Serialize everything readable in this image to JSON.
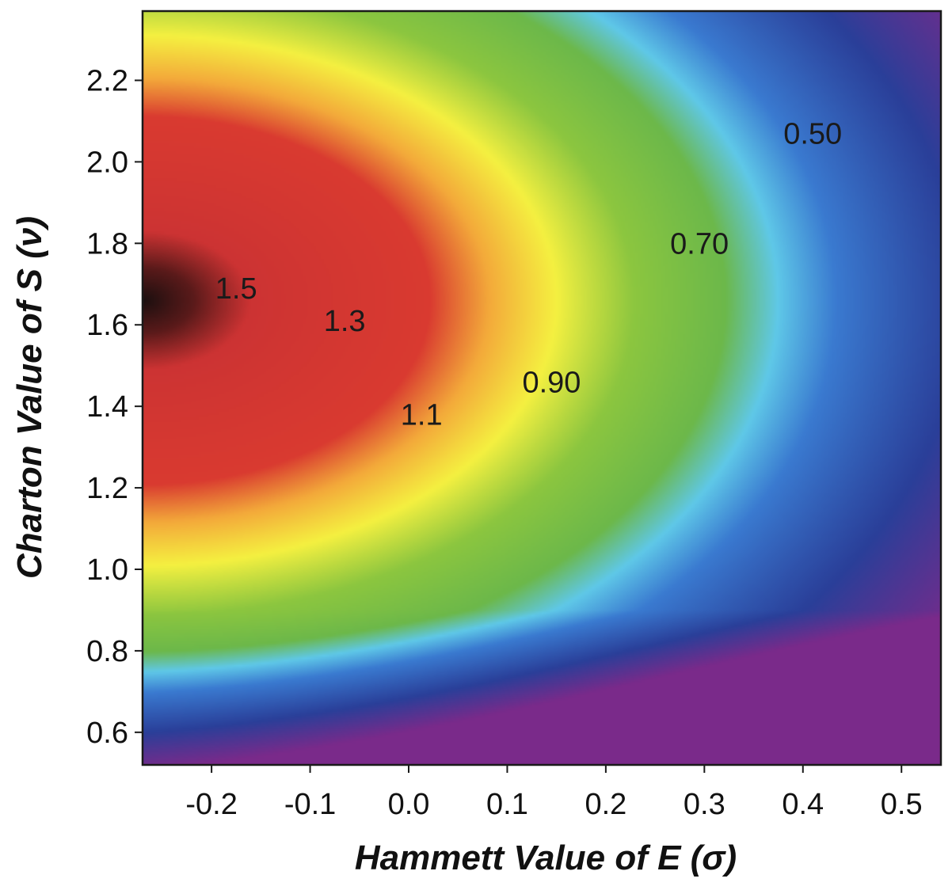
{
  "chart_data": {
    "type": "heatmap",
    "xlabel": "Hammett Value of E (σ)",
    "ylabel": "Charton Value of S (ν)",
    "xlim": [
      -0.27,
      0.54
    ],
    "ylim": [
      0.52,
      2.37
    ],
    "x_ticks": [
      -0.2,
      -0.1,
      0.0,
      0.1,
      0.2,
      0.3,
      0.4,
      0.5
    ],
    "x_tick_labels": [
      "-0.2",
      "-0.1",
      "0.0",
      "0.1",
      "0.2",
      "0.3",
      "0.4",
      "0.5"
    ],
    "y_ticks": [
      0.6,
      0.8,
      1.0,
      1.2,
      1.4,
      1.6,
      1.8,
      2.0,
      2.2
    ],
    "y_tick_labels": [
      "0.6",
      "0.8",
      "1.0",
      "1.2",
      "1.4",
      "1.6",
      "1.8",
      "2.0",
      "2.2"
    ],
    "surface": {
      "peak_x": -0.27,
      "peak_y": 1.66,
      "peak_value": 1.6,
      "color_scale": [
        {
          "value": 0.25,
          "color": "#7a2a8a"
        },
        {
          "value": 0.33,
          "color": "#2a3f99"
        },
        {
          "value": 0.42,
          "color": "#3a7ad0"
        },
        {
          "value": 0.47,
          "color": "#5fc8e8"
        },
        {
          "value": 0.52,
          "color": "#6cb84a"
        },
        {
          "value": 0.62,
          "color": "#8cc63f"
        },
        {
          "value": 0.72,
          "color": "#f4f040"
        },
        {
          "value": 0.82,
          "color": "#f3a93a"
        },
        {
          "value": 0.92,
          "color": "#d93a30"
        },
        {
          "value": 1.3,
          "color": "#cc3333"
        },
        {
          "value": 1.45,
          "color": "#5a1a1a"
        },
        {
          "value": 1.6,
          "color": "#1a0f0f"
        }
      ]
    },
    "contour_labels": [
      {
        "text": "1.5",
        "x": -0.175,
        "y": 1.69
      },
      {
        "text": "1.3",
        "x": -0.065,
        "y": 1.61
      },
      {
        "text": "1.1",
        "x": 0.013,
        "y": 1.38
      },
      {
        "text": "0.90",
        "x": 0.145,
        "y": 1.46
      },
      {
        "text": "0.70",
        "x": 0.295,
        "y": 1.8
      },
      {
        "text": "0.50",
        "x": 0.41,
        "y": 2.07
      }
    ]
  }
}
